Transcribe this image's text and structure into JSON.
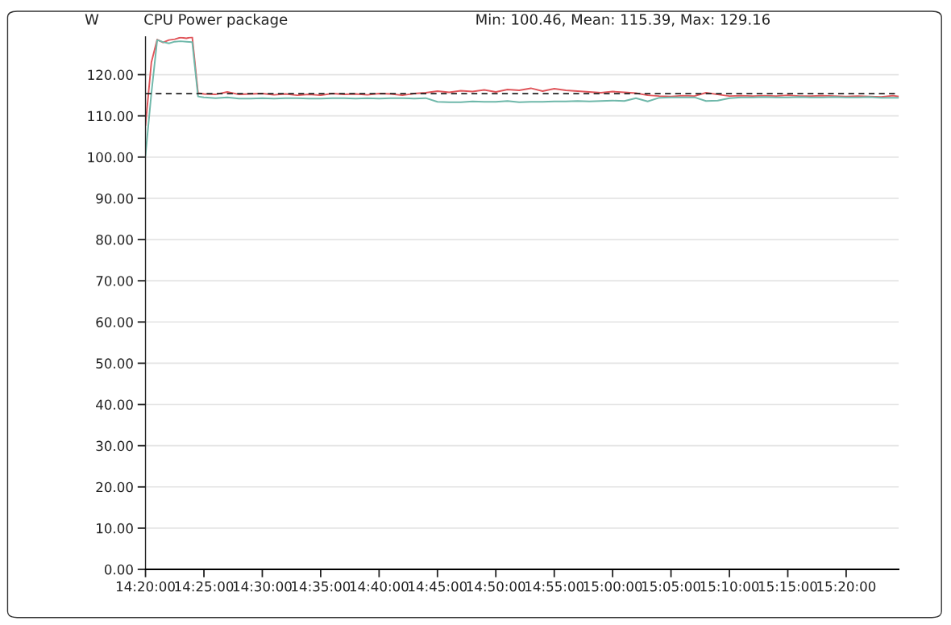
{
  "chart_data": {
    "type": "line",
    "title": "CPU Power package",
    "ylabel": "W",
    "annotations": [
      "Min: 100.46, Mean: 115.39, Max: 129.16"
    ],
    "x": [
      14.3333,
      14.3417,
      14.35,
      14.3583,
      14.3667,
      14.375,
      14.3833,
      14.3917,
      14.4,
      14.4083,
      14.4167,
      14.4333,
      14.45,
      14.4667,
      14.4833,
      14.5,
      14.5167,
      14.5333,
      14.55,
      14.5667,
      14.5833,
      14.6,
      14.6167,
      14.6333,
      14.65,
      14.6667,
      14.6833,
      14.7,
      14.7167,
      14.7333,
      14.75,
      14.7667,
      14.7833,
      14.8,
      14.8167,
      14.8333,
      14.85,
      14.8667,
      14.8833,
      14.9,
      14.9167,
      14.9333,
      14.95,
      14.9667,
      14.9833,
      15.0,
      15.0167,
      15.0333,
      15.05,
      15.0667,
      15.0833,
      15.1,
      15.1167,
      15.1333,
      15.15,
      15.1667,
      15.1833,
      15.2,
      15.2167,
      15.2333,
      15.25,
      15.2667,
      15.2833,
      15.3,
      15.3167,
      15.3333,
      15.35,
      15.3667,
      15.3833,
      15.4,
      15.4083
    ],
    "series": [
      {
        "color": "#e0565b",
        "values": [
          107.8,
          123.0,
          128.5,
          127.8,
          128.4,
          128.6,
          129.0,
          128.8,
          129.16,
          115.5,
          115.3,
          115.2,
          115.8,
          115.2,
          115.3,
          115.4,
          115.1,
          115.3,
          115.0,
          115.2,
          115.0,
          115.4,
          115.2,
          115.3,
          115.1,
          115.4,
          115.3,
          115.0,
          115.4,
          115.6,
          116.0,
          115.7,
          116.1,
          115.9,
          116.3,
          115.8,
          116.4,
          116.2,
          116.7,
          116.0,
          116.6,
          116.2,
          116.0,
          115.8,
          115.6,
          115.9,
          115.7,
          115.5,
          115.0,
          114.8,
          114.7,
          114.9,
          114.8,
          115.6,
          115.2,
          114.8,
          114.9,
          114.8,
          114.9,
          114.8,
          115.0,
          114.8,
          114.8,
          114.9,
          114.8,
          114.7,
          114.8,
          114.7,
          114.6,
          114.9,
          114.7
        ]
      },
      {
        "color": "#6fb8aa",
        "values": [
          100.46,
          115.5,
          128.4,
          127.9,
          127.6,
          128.0,
          128.1,
          128.0,
          127.9,
          114.7,
          114.5,
          114.3,
          114.5,
          114.2,
          114.2,
          114.3,
          114.2,
          114.3,
          114.3,
          114.2,
          114.2,
          114.3,
          114.3,
          114.2,
          114.3,
          114.2,
          114.3,
          114.3,
          114.2,
          114.3,
          113.4,
          113.3,
          113.3,
          113.5,
          113.4,
          113.4,
          113.6,
          113.3,
          113.4,
          113.4,
          113.5,
          113.5,
          113.6,
          113.5,
          113.6,
          113.7,
          113.6,
          114.3,
          113.5,
          114.4,
          114.5,
          114.5,
          114.5,
          113.6,
          113.7,
          114.3,
          114.5,
          114.5,
          114.6,
          114.5,
          114.5,
          114.6,
          114.5,
          114.5,
          114.6,
          114.5,
          114.5,
          114.6,
          114.4,
          114.4,
          114.4
        ]
      }
    ],
    "xlim": [
      14.3333,
      15.4083
    ],
    "xticks": [
      {
        "value": 14.3333,
        "label": "14:20:00"
      },
      {
        "value": 14.4167,
        "label": "14:25:00"
      },
      {
        "value": 14.5,
        "label": "14:30:00"
      },
      {
        "value": 14.5833,
        "label": "14:35:00"
      },
      {
        "value": 14.6667,
        "label": "14:40:00"
      },
      {
        "value": 14.75,
        "label": "14:45:00"
      },
      {
        "value": 14.8333,
        "label": "14:50:00"
      },
      {
        "value": 14.9167,
        "label": "14:55:00"
      },
      {
        "value": 15.0,
        "label": "15:00:00"
      },
      {
        "value": 15.0833,
        "label": "15:05:00"
      },
      {
        "value": 15.1667,
        "label": "15:10:00"
      },
      {
        "value": 15.25,
        "label": "15:15:00"
      },
      {
        "value": 15.3333,
        "label": "15:20:00"
      }
    ],
    "ylim": [
      0,
      129.16
    ],
    "yticks": [
      {
        "value": 0,
        "label": "0.00"
      },
      {
        "value": 10,
        "label": "10.00"
      },
      {
        "value": 20,
        "label": "20.00"
      },
      {
        "value": 30,
        "label": "30.00"
      },
      {
        "value": 40,
        "label": "40.00"
      },
      {
        "value": 50,
        "label": "50.00"
      },
      {
        "value": 60,
        "label": "60.00"
      },
      {
        "value": 70,
        "label": "70.00"
      },
      {
        "value": 80,
        "label": "80.00"
      },
      {
        "value": 90,
        "label": "90.00"
      },
      {
        "value": 100,
        "label": "100.00"
      },
      {
        "value": 110,
        "label": "110.00"
      },
      {
        "value": 120,
        "label": "120.00"
      }
    ],
    "ref_lines": [
      {
        "axis": "y",
        "value": 115.39,
        "color": "#222222",
        "line_style": "dashed"
      }
    ],
    "grid": "y",
    "line_style": "solid",
    "marker": "none"
  }
}
